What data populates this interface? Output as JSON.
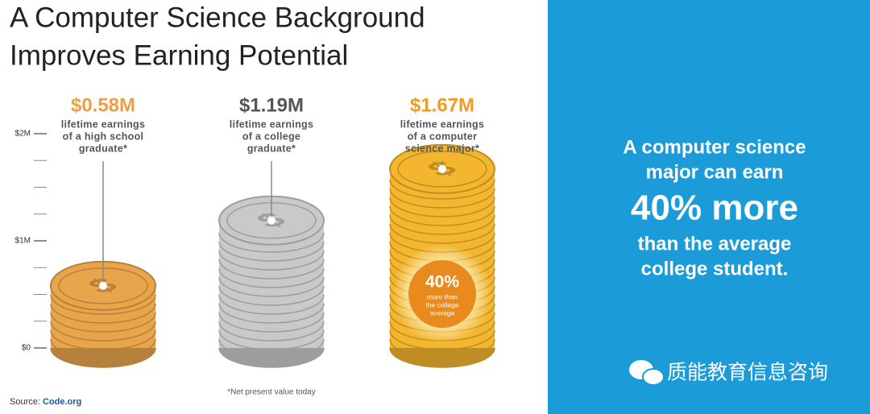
{
  "title_lines": [
    "A Computer Science Background",
    "Improves Earning Potential"
  ],
  "panel": {
    "lines": [
      "A computer science",
      "major can earn"
    ],
    "highlight": "40% more",
    "lines_after": [
      "than the average",
      "college student."
    ]
  },
  "watermark": "质能教育信息咨询",
  "chart_data": {
    "type": "bar",
    "categories": [
      [
        "lifetime earnings",
        "of a high school",
        "graduate*"
      ],
      [
        "lifetime earnings",
        "of a college",
        "graduate*"
      ],
      [
        "lifetime earnings",
        "of a computer",
        "science major*"
      ]
    ],
    "values": [
      0.58,
      1.19,
      1.67
    ],
    "value_labels": [
      "$0.58M",
      "$1.19M",
      "$1.67M"
    ],
    "colors": [
      "#e9a54c",
      "#c9c9c9",
      "#f3b62e"
    ],
    "ylim": [
      0,
      2
    ],
    "yticks": [
      {
        "value": 0,
        "label": "$0"
      },
      {
        "value": 1,
        "label": "$1M"
      },
      {
        "value": 2,
        "label": "$2M"
      }
    ],
    "minor_yticks": [
      0.25,
      0.5,
      0.75,
      1.25,
      1.5,
      1.75
    ],
    "annotation": {
      "text": "40%",
      "lines": [
        "more than",
        "the college",
        "average"
      ]
    },
    "footnote": "*Net present value today",
    "source_label": "Source:",
    "source": "Code.org"
  }
}
